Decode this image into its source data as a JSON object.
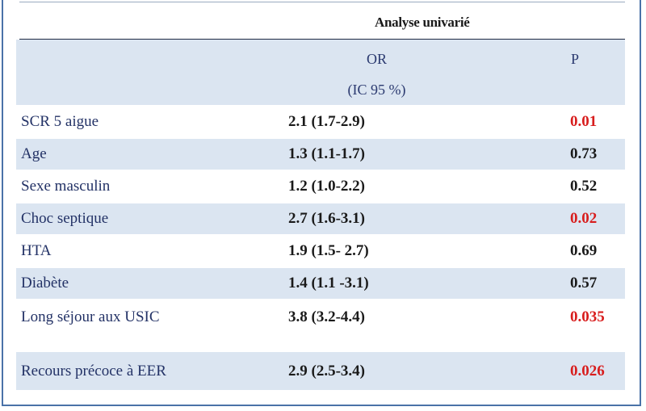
{
  "header": {
    "group_title": "Analyse univarié",
    "col_or": "OR",
    "col_ci": "(IC 95 %)",
    "col_p": "P"
  },
  "rows": [
    {
      "label": "SCR 5 aigue",
      "or": "2.1 (1.7-2.9)",
      "p": "0.01",
      "significant": true
    },
    {
      "label": "Age",
      "or": "1.3 (1.1-1.7)",
      "p": "0.73",
      "significant": false
    },
    {
      "label": "Sexe masculin",
      "or": "1.2 (1.0-2.2)",
      "p": "0.52",
      "significant": false
    },
    {
      "label": "Choc septique",
      "or": "2.7 (1.6-3.1)",
      "p": "0.02",
      "significant": true
    },
    {
      "label": "HTA",
      "or": "1.9 (1.5- 2.7)",
      "p": "0.69",
      "significant": false
    },
    {
      "label": "Diabète",
      "or": "1.4 (1.1 -3.1)",
      "p": "0.57",
      "significant": false
    },
    {
      "label": "Long séjour aux USIC",
      "or": "3.8 (3.2-4.4)",
      "p": "0.035",
      "significant": true
    },
    {
      "label": "Recours  précoce à EER",
      "or": "2.9 (2.5-3.4)",
      "p": "0.026",
      "significant": true
    }
  ],
  "colors": {
    "shade": "#dbe5f1",
    "significant": "#d81e1e",
    "border": "#4a72a8"
  }
}
